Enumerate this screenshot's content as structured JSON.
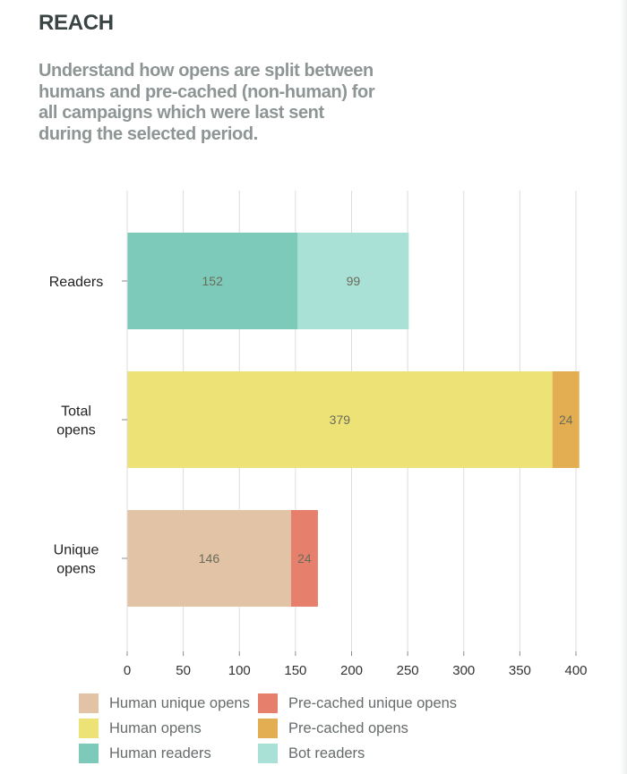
{
  "header": {
    "title": "REACH",
    "subtitle": "Understand how opens are split between humans and pre-cached (non-human) for all campaigns which were last sent during the selected period."
  },
  "chart_data": {
    "type": "bar",
    "orientation": "horizontal",
    "stacked": true,
    "categories": [
      "Readers",
      "Total opens",
      "Unique opens"
    ],
    "category_lines": [
      [
        "Readers"
      ],
      [
        "Total",
        "opens"
      ],
      [
        "Unique",
        "opens"
      ]
    ],
    "bars": [
      {
        "category": "Readers",
        "segments": [
          {
            "series": "Human readers",
            "value": 152,
            "color": "#7dcabb"
          },
          {
            "series": "Bot readers",
            "value": 99,
            "color": "#a9e1d7"
          }
        ]
      },
      {
        "category": "Total opens",
        "segments": [
          {
            "series": "Human opens",
            "value": 379,
            "color": "#ede276"
          },
          {
            "series": "Pre-cached opens",
            "value": 24,
            "color": "#e3ae52"
          }
        ]
      },
      {
        "category": "Unique opens",
        "segments": [
          {
            "series": "Human unique opens",
            "value": 146,
            "color": "#e2c3a5"
          },
          {
            "series": "Pre-cached unique opens",
            "value": 24,
            "color": "#e6806d"
          }
        ]
      }
    ],
    "x_ticks": [
      0,
      50,
      100,
      150,
      200,
      250,
      300,
      350,
      400
    ],
    "xlim": [
      0,
      400
    ],
    "grid": true,
    "legend": [
      {
        "label": "Human unique opens",
        "color": "#e2c3a5"
      },
      {
        "label": "Pre-cached unique opens",
        "color": "#e6806d"
      },
      {
        "label": "Human opens",
        "color": "#ede276"
      },
      {
        "label": "Pre-cached opens",
        "color": "#e3ae52"
      },
      {
        "label": "Human readers",
        "color": "#7dcabb"
      },
      {
        "label": "Bot readers",
        "color": "#a9e1d7"
      }
    ],
    "legend_position": "bottom"
  }
}
